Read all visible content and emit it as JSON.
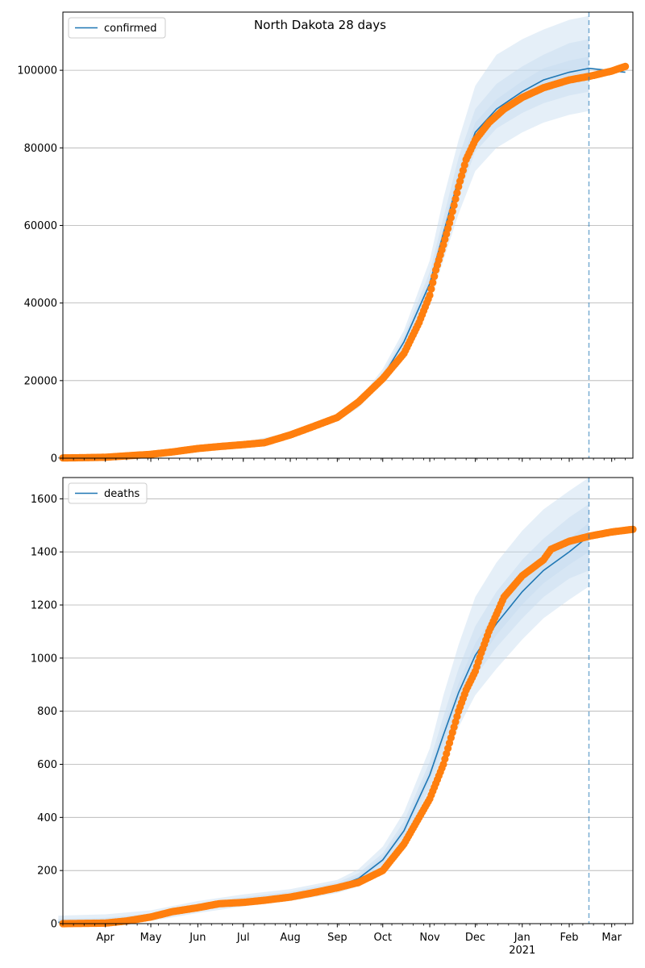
{
  "figure": {
    "title": "North Dakota 28 days"
  },
  "chart_data": [
    {
      "type": "line",
      "panel": "confirmed",
      "legend": [
        "confirmed"
      ],
      "legend_position": "top-left",
      "grid": "y",
      "ylim": [
        0,
        115000
      ],
      "y_ticks": [
        0,
        20000,
        40000,
        60000,
        80000,
        100000
      ],
      "y_tick_labels": [
        "0",
        "20000",
        "40000",
        "60000",
        "80000",
        "100000"
      ],
      "colors": {
        "model": "#1f77b4",
        "observed": "#ff7f0e",
        "band": "#c6dbef",
        "forecast_line": "#1f77b4"
      },
      "forecast_start": "2021-02-14",
      "model_fit": {
        "x": [
          "2020-03-01",
          "2020-04-01",
          "2020-05-01",
          "2020-06-01",
          "2020-07-01",
          "2020-08-01",
          "2020-09-01",
          "2020-09-15",
          "2020-10-01",
          "2020-10-15",
          "2020-11-01",
          "2020-11-10",
          "2020-11-20",
          "2020-12-01",
          "2020-12-15",
          "2021-01-01",
          "2021-01-15",
          "2021-02-01",
          "2021-02-14"
        ],
        "values": [
          100,
          300,
          900,
          2500,
          3700,
          6000,
          10000,
          14000,
          21000,
          30000,
          45000,
          58000,
          72000,
          84000,
          90000,
          94500,
          97500,
          99500,
          100500
        ]
      },
      "bands": [
        {
          "level": "outer",
          "lower": [
            0,
            100,
            600,
            2000,
            3300,
            5500,
            9500,
            13000,
            19500,
            27000,
            40000,
            51000,
            63000,
            74000,
            80000,
            84000,
            86500,
            88500,
            89500
          ],
          "upper": [
            300,
            600,
            1300,
            3000,
            4200,
            6600,
            10600,
            15000,
            23000,
            33000,
            51000,
            67000,
            82000,
            96000,
            104000,
            108000,
            110500,
            113000,
            114000
          ]
        },
        {
          "level": "middle",
          "lower": [
            50,
            200,
            750,
            2200,
            3500,
            5700,
            9700,
            13400,
            20200,
            28500,
            42500,
            54500,
            67500,
            79000,
            85000,
            89000,
            91500,
            93500,
            94500
          ],
          "upper": [
            200,
            450,
            1100,
            2800,
            4000,
            6300,
            10300,
            14600,
            22000,
            31500,
            48000,
            62000,
            77500,
            90000,
            96500,
            101000,
            104000,
            107000,
            108000
          ]
        },
        {
          "level": "inner",
          "lower": [
            80,
            250,
            850,
            2350,
            3600,
            5850,
            9850,
            13700,
            20600,
            29300,
            43800,
            56200,
            69800,
            81500,
            87500,
            91800,
            94500,
            96500,
            97500
          ],
          "upper": [
            130,
            350,
            950,
            2650,
            3800,
            6150,
            10150,
            14300,
            21400,
            30700,
            46200,
            59800,
            74200,
            86500,
            92500,
            97200,
            100500,
            102500,
            103500
          ]
        }
      ],
      "forecast": {
        "x": [
          "2021-02-14",
          "2021-03-10"
        ],
        "values": [
          100500,
          99500
        ]
      },
      "observed": {
        "x": [
          "2020-03-01",
          "2020-03-20",
          "2020-04-01",
          "2020-04-15",
          "2020-05-01",
          "2020-05-15",
          "2020-06-01",
          "2020-06-15",
          "2020-07-01",
          "2020-07-15",
          "2020-08-01",
          "2020-08-15",
          "2020-09-01",
          "2020-09-15",
          "2020-10-01",
          "2020-10-15",
          "2020-10-25",
          "2020-11-01",
          "2020-11-05",
          "2020-11-10",
          "2020-11-15",
          "2020-11-20",
          "2020-11-25",
          "2020-12-01",
          "2020-12-10",
          "2020-12-20",
          "2021-01-01",
          "2021-01-15",
          "2021-02-01",
          "2021-02-15",
          "2021-03-01",
          "2021-03-10"
        ],
        "values": [
          50,
          150,
          250,
          600,
          1000,
          1600,
          2500,
          3000,
          3500,
          4000,
          6000,
          8000,
          10500,
          14500,
          20500,
          27000,
          35000,
          42000,
          48500,
          55000,
          62000,
          70000,
          77000,
          82000,
          86500,
          90000,
          93000,
          95500,
          97500,
          98500,
          99800,
          101000
        ]
      }
    },
    {
      "type": "line",
      "panel": "deaths",
      "legend": [
        "deaths"
      ],
      "legend_position": "top-left",
      "grid": "y",
      "ylim": [
        0,
        1680
      ],
      "y_ticks": [
        0,
        200,
        400,
        600,
        800,
        1000,
        1200,
        1400,
        1600
      ],
      "y_tick_labels": [
        "0",
        "200",
        "400",
        "600",
        "800",
        "1000",
        "1200",
        "1400",
        "1600"
      ],
      "x_tick_labels": [
        "Apr",
        "May",
        "Jun",
        "Jul",
        "Aug",
        "Sep",
        "Oct",
        "Nov",
        "Dec",
        "Jan",
        "Feb",
        "Mar"
      ],
      "x_tick_dates": [
        "2020-04-01",
        "2020-05-01",
        "2020-06-01",
        "2020-07-01",
        "2020-08-01",
        "2020-09-01",
        "2020-10-01",
        "2020-11-01",
        "2020-12-01",
        "2021-01-01",
        "2021-02-01",
        "2021-03-01"
      ],
      "x_year_label": "2021",
      "x_year_date": "2021-01-01",
      "xlim": [
        "2020-03-04",
        "2021-03-15"
      ],
      "colors": {
        "model": "#1f77b4",
        "observed": "#ff7f0e",
        "band": "#c6dbef",
        "forecast_line": "#1f77b4"
      },
      "forecast_start": "2021-02-14",
      "model_fit": {
        "x": [
          "2020-03-01",
          "2020-04-01",
          "2020-05-01",
          "2020-06-01",
          "2020-07-01",
          "2020-08-01",
          "2020-09-01",
          "2020-09-15",
          "2020-10-01",
          "2020-10-15",
          "2020-11-01",
          "2020-11-10",
          "2020-11-20",
          "2020-12-01",
          "2020-12-15",
          "2021-01-01",
          "2021-01-15",
          "2021-02-01",
          "2021-02-14"
        ],
        "values": [
          5,
          8,
          25,
          60,
          85,
          105,
          140,
          170,
          240,
          350,
          560,
          710,
          870,
          1010,
          1130,
          1250,
          1330,
          1400,
          1460
        ]
      },
      "bands": [
        {
          "level": "outer",
          "lower": [
            0,
            0,
            10,
            40,
            65,
            85,
            115,
            140,
            200,
            290,
            470,
            600,
            740,
            860,
            960,
            1070,
            1150,
            1220,
            1270
          ],
          "upper": [
            30,
            35,
            50,
            85,
            110,
            130,
            165,
            205,
            290,
            420,
            660,
            860,
            1050,
            1230,
            1360,
            1480,
            1560,
            1630,
            1680
          ]
        },
        {
          "level": "middle",
          "lower": [
            0,
            2,
            15,
            48,
            73,
            93,
            125,
            152,
            217,
            315,
            510,
            650,
            800,
            930,
            1040,
            1150,
            1230,
            1300,
            1330
          ]
        },
        {
          "level": "middle-upper",
          "upper": [
            18,
            22,
            38,
            75,
            100,
            120,
            155,
            190,
            265,
            385,
            610,
            780,
            960,
            1120,
            1250,
            1370,
            1450,
            1530,
            1580
          ]
        },
        {
          "level": "inner",
          "lower": [
            2,
            5,
            20,
            54,
            79,
            99,
            133,
            162,
            229,
            335,
            537,
            682,
            838,
            972,
            1087,
            1202,
            1282,
            1352,
            1400
          ],
          "upper": [
            10,
            13,
            31,
            66,
            92,
            112,
            148,
            180,
            253,
            367,
            585,
            740,
            905,
            1055,
            1180,
            1300,
            1380,
            1450,
            1510
          ]
        }
      ],
      "forecast": {
        "x": [
          "2021-02-14",
          "2021-03-10"
        ],
        "values": [
          1460,
          1480
        ]
      },
      "observed": {
        "x": [
          "2020-03-04",
          "2020-04-01",
          "2020-04-15",
          "2020-05-01",
          "2020-05-15",
          "2020-06-01",
          "2020-06-15",
          "2020-07-01",
          "2020-07-15",
          "2020-08-01",
          "2020-08-15",
          "2020-09-01",
          "2020-09-15",
          "2020-10-01",
          "2020-10-15",
          "2020-10-25",
          "2020-11-01",
          "2020-11-10",
          "2020-11-15",
          "2020-11-20",
          "2020-11-25",
          "2020-12-01",
          "2020-12-05",
          "2020-12-10",
          "2020-12-20",
          "2021-01-01",
          "2021-01-15",
          "2021-01-20",
          "2021-02-01",
          "2021-02-15",
          "2021-03-01",
          "2021-03-15"
        ],
        "values": [
          0,
          2,
          10,
          25,
          45,
          60,
          75,
          80,
          88,
          100,
          115,
          135,
          155,
          200,
          300,
          400,
          470,
          600,
          700,
          800,
          880,
          950,
          1020,
          1100,
          1230,
          1310,
          1370,
          1410,
          1440,
          1460,
          1475,
          1485
        ]
      }
    }
  ]
}
